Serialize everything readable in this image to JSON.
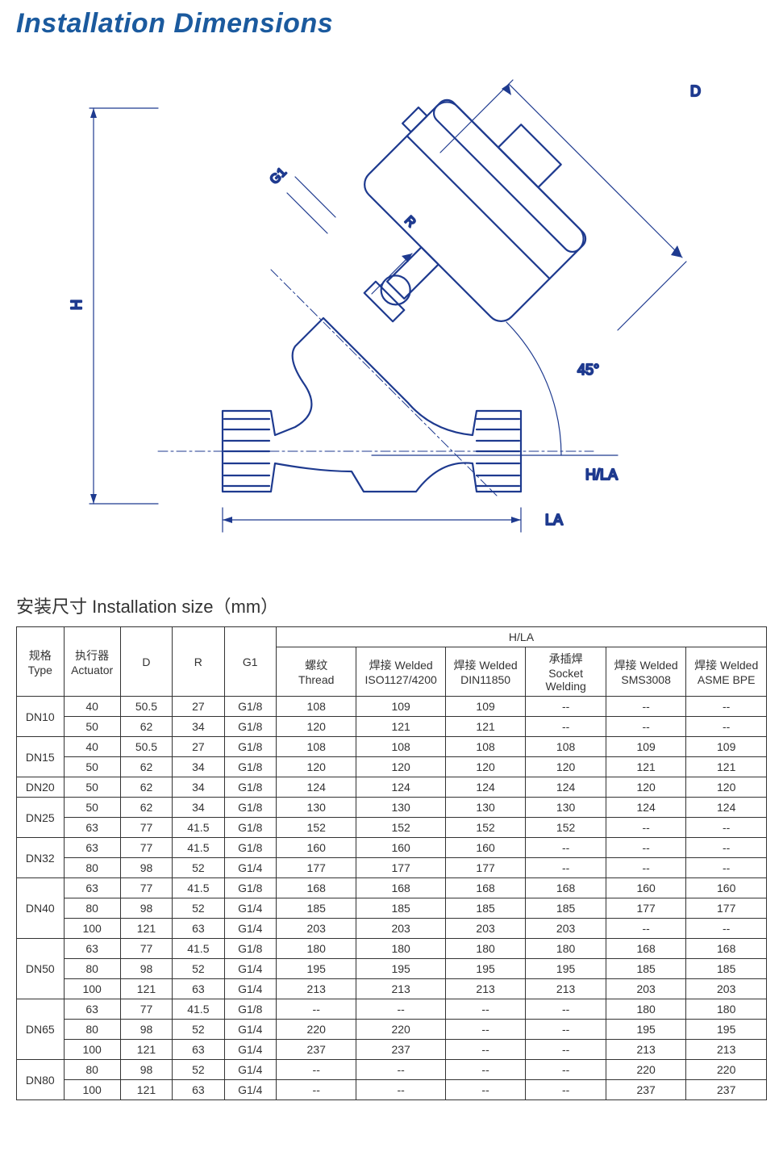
{
  "title": "Installation Dimensions",
  "subheading": "安装尺寸 Installation size（mm）",
  "diagram": {
    "labels": {
      "H": "H",
      "D": "D",
      "G1": "G1",
      "R": "R",
      "angle": "45°",
      "LA": "LA",
      "HLA": "H/LA"
    },
    "stroke": "#1e3a8f",
    "stroke_width": 2
  },
  "table": {
    "header_row1": {
      "type": "规格",
      "actuator": "执行器",
      "hla": "H/LA"
    },
    "header_row2": {
      "type": "Type",
      "actuator": "Actuator",
      "d": "D",
      "r": "R",
      "g1": "G1",
      "thread_cn": "螺纹",
      "thread_en": "Thread",
      "welded_iso_cn": "焊接 Welded",
      "welded_iso_en": "ISO1127/4200",
      "welded_din_cn": "焊接 Welded",
      "welded_din_en": "DIN11850",
      "socket_cn": "承插焊",
      "socket_en": "Socket Welding",
      "welded_sms_cn": "焊接 Welded",
      "welded_sms_en": "SMS3008",
      "welded_asme_cn": "焊接 Welded",
      "welded_asme_en": "ASME BPE"
    },
    "groups": [
      {
        "type": "DN10",
        "rows": [
          {
            "act": "40",
            "d": "50.5",
            "r": "27",
            "g1": "G1/8",
            "thread": "108",
            "iso": "109",
            "din": "109",
            "socket": "--",
            "sms": "--",
            "asme": "--"
          },
          {
            "act": "50",
            "d": "62",
            "r": "34",
            "g1": "G1/8",
            "thread": "120",
            "iso": "121",
            "din": "121",
            "socket": "--",
            "sms": "--",
            "asme": "--"
          }
        ]
      },
      {
        "type": "DN15",
        "rows": [
          {
            "act": "40",
            "d": "50.5",
            "r": "27",
            "g1": "G1/8",
            "thread": "108",
            "iso": "108",
            "din": "108",
            "socket": "108",
            "sms": "109",
            "asme": "109"
          },
          {
            "act": "50",
            "d": "62",
            "r": "34",
            "g1": "G1/8",
            "thread": "120",
            "iso": "120",
            "din": "120",
            "socket": "120",
            "sms": "121",
            "asme": "121"
          }
        ]
      },
      {
        "type": "DN20",
        "rows": [
          {
            "act": "50",
            "d": "62",
            "r": "34",
            "g1": "G1/8",
            "thread": "124",
            "iso": "124",
            "din": "124",
            "socket": "124",
            "sms": "120",
            "asme": "120"
          }
        ]
      },
      {
        "type": "DN25",
        "rows": [
          {
            "act": "50",
            "d": "62",
            "r": "34",
            "g1": "G1/8",
            "thread": "130",
            "iso": "130",
            "din": "130",
            "socket": "130",
            "sms": "124",
            "asme": "124"
          },
          {
            "act": "63",
            "d": "77",
            "r": "41.5",
            "g1": "G1/8",
            "thread": "152",
            "iso": "152",
            "din": "152",
            "socket": "152",
            "sms": "--",
            "asme": "--"
          }
        ]
      },
      {
        "type": "DN32",
        "rows": [
          {
            "act": "63",
            "d": "77",
            "r": "41.5",
            "g1": "G1/8",
            "thread": "160",
            "iso": "160",
            "din": "160",
            "socket": "--",
            "sms": "--",
            "asme": "--"
          },
          {
            "act": "80",
            "d": "98",
            "r": "52",
            "g1": "G1/4",
            "thread": "177",
            "iso": "177",
            "din": "177",
            "socket": "--",
            "sms": "--",
            "asme": "--"
          }
        ]
      },
      {
        "type": "DN40",
        "rows": [
          {
            "act": "63",
            "d": "77",
            "r": "41.5",
            "g1": "G1/8",
            "thread": "168",
            "iso": "168",
            "din": "168",
            "socket": "168",
            "sms": "160",
            "asme": "160"
          },
          {
            "act": "80",
            "d": "98",
            "r": "52",
            "g1": "G1/4",
            "thread": "185",
            "iso": "185",
            "din": "185",
            "socket": "185",
            "sms": "177",
            "asme": "177"
          },
          {
            "act": "100",
            "d": "121",
            "r": "63",
            "g1": "G1/4",
            "thread": "203",
            "iso": "203",
            "din": "203",
            "socket": "203",
            "sms": "--",
            "asme": "--"
          }
        ]
      },
      {
        "type": "DN50",
        "rows": [
          {
            "act": "63",
            "d": "77",
            "r": "41.5",
            "g1": "G1/8",
            "thread": "180",
            "iso": "180",
            "din": "180",
            "socket": "180",
            "sms": "168",
            "asme": "168"
          },
          {
            "act": "80",
            "d": "98",
            "r": "52",
            "g1": "G1/4",
            "thread": "195",
            "iso": "195",
            "din": "195",
            "socket": "195",
            "sms": "185",
            "asme": "185"
          },
          {
            "act": "100",
            "d": "121",
            "r": "63",
            "g1": "G1/4",
            "thread": "213",
            "iso": "213",
            "din": "213",
            "socket": "213",
            "sms": "203",
            "asme": "203"
          }
        ]
      },
      {
        "type": "DN65",
        "rows": [
          {
            "act": "63",
            "d": "77",
            "r": "41.5",
            "g1": "G1/8",
            "thread": "--",
            "iso": "--",
            "din": "--",
            "socket": "--",
            "sms": "180",
            "asme": "180"
          },
          {
            "act": "80",
            "d": "98",
            "r": "52",
            "g1": "G1/4",
            "thread": "220",
            "iso": "220",
            "din": "--",
            "socket": "--",
            "sms": "195",
            "asme": "195"
          },
          {
            "act": "100",
            "d": "121",
            "r": "63",
            "g1": "G1/4",
            "thread": "237",
            "iso": "237",
            "din": "--",
            "socket": "--",
            "sms": "213",
            "asme": "213"
          }
        ]
      },
      {
        "type": "DN80",
        "rows": [
          {
            "act": "80",
            "d": "98",
            "r": "52",
            "g1": "G1/4",
            "thread": "--",
            "iso": "--",
            "din": "--",
            "socket": "--",
            "sms": "220",
            "asme": "220"
          },
          {
            "act": "100",
            "d": "121",
            "r": "63",
            "g1": "G1/4",
            "thread": "--",
            "iso": "--",
            "din": "--",
            "socket": "--",
            "sms": "237",
            "asme": "237"
          }
        ]
      }
    ]
  }
}
